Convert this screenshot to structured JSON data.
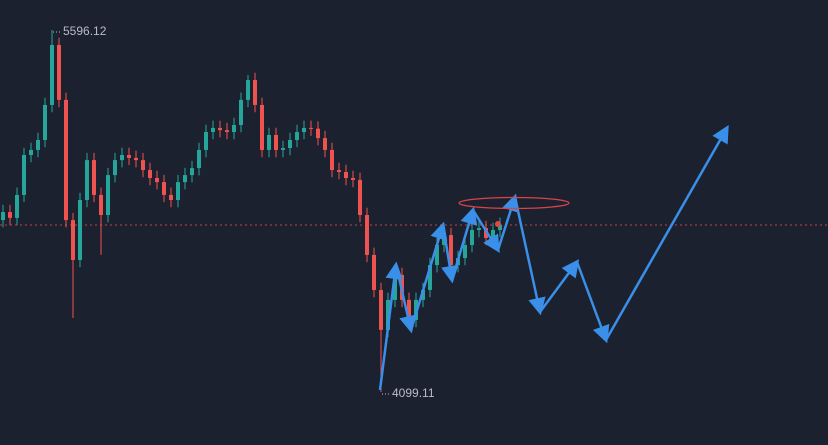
{
  "chart_data": {
    "type": "candlestick",
    "ylim": [
      3880,
      5720
    ],
    "up_color": "#26a69a",
    "down_color": "#ef5350",
    "open": [
      4810,
      4843,
      4819,
      4914,
      5079,
      5100,
      5141,
      5286,
      5534,
      5307,
      4810,
      4645,
      4893,
      5058,
      4914,
      4831,
      4996,
      5058,
      5079,
      5067,
      5058,
      5017,
      4984,
      4967,
      4914,
      4893,
      4967,
      4996,
      5025,
      5100,
      5174,
      5191,
      5182,
      5174,
      5203,
      5307,
      5389,
      5286,
      5100,
      5162,
      5100,
      5108,
      5141,
      5174,
      5191,
      5188,
      5149,
      5100,
      5017,
      5009,
      4984,
      4976,
      4831,
      4666,
      4521,
      4356,
      4480,
      4583,
      4480,
      4397,
      4480,
      4521,
      4624,
      4707,
      4748,
      4624,
      4653,
      4707,
      4769,
      4777,
      4736,
      4769
    ],
    "high": [
      4873,
      4873,
      4944,
      5109,
      5130,
      5171,
      5316,
      5596.12,
      5564,
      5337,
      4840,
      4923,
      5088,
      5088,
      4944,
      5026,
      5088,
      5109,
      5109,
      5097,
      5088,
      5047,
      5014,
      4997,
      4944,
      4997,
      5026,
      5055,
      5130,
      5204,
      5221,
      5221,
      5212,
      5233,
      5337,
      5410,
      5419,
      5316,
      5192,
      5192,
      5138,
      5171,
      5204,
      5221,
      5221,
      5218,
      5179,
      5130,
      5047,
      5039,
      5014,
      5006,
      4861,
      4696,
      4551,
      4510,
      4613,
      4613,
      4510,
      4510,
      4551,
      4654,
      4737,
      4778,
      4778,
      4683,
      4737,
      4799,
      4807,
      4807,
      4799,
      4820
    ],
    "low": [
      4780,
      4789,
      4789,
      4884,
      5049,
      5070,
      5111,
      5256,
      5277,
      4780,
      4405,
      4615,
      4863,
      4884,
      4666,
      4801,
      4966,
      5028,
      5037,
      5028,
      4987,
      4954,
      4937,
      4884,
      4863,
      4863,
      4937,
      4966,
      4995,
      5070,
      5144,
      5152,
      5144,
      5144,
      5173,
      5277,
      5256,
      5070,
      5070,
      5070,
      5070,
      5078,
      5111,
      5144,
      5158,
      5119,
      5070,
      4987,
      4979,
      4954,
      4946,
      4801,
      4636,
      4491,
      4099.11,
      4326,
      4450,
      4450,
      4367,
      4367,
      4450,
      4491,
      4594,
      4677,
      4594,
      4594,
      4623,
      4677,
      4739,
      4706,
      4706,
      4739
    ],
    "close": [
      4843,
      4819,
      4914,
      5079,
      5100,
      5141,
      5286,
      5534,
      5307,
      4810,
      4645,
      4893,
      5058,
      4914,
      4831,
      4996,
      5058,
      5079,
      5067,
      5058,
      5017,
      4984,
      4967,
      4914,
      4893,
      4967,
      4996,
      5025,
      5100,
      5174,
      5191,
      5182,
      5174,
      5203,
      5307,
      5389,
      5286,
      5100,
      5162,
      5100,
      5108,
      5141,
      5174,
      5191,
      5188,
      5149,
      5100,
      5017,
      5009,
      4984,
      4976,
      4831,
      4666,
      4521,
      4356,
      4480,
      4583,
      4480,
      4397,
      4480,
      4521,
      4624,
      4707,
      4748,
      4624,
      4653,
      4707,
      4769,
      4777,
      4736,
      4769,
      4790
    ]
  }
}
